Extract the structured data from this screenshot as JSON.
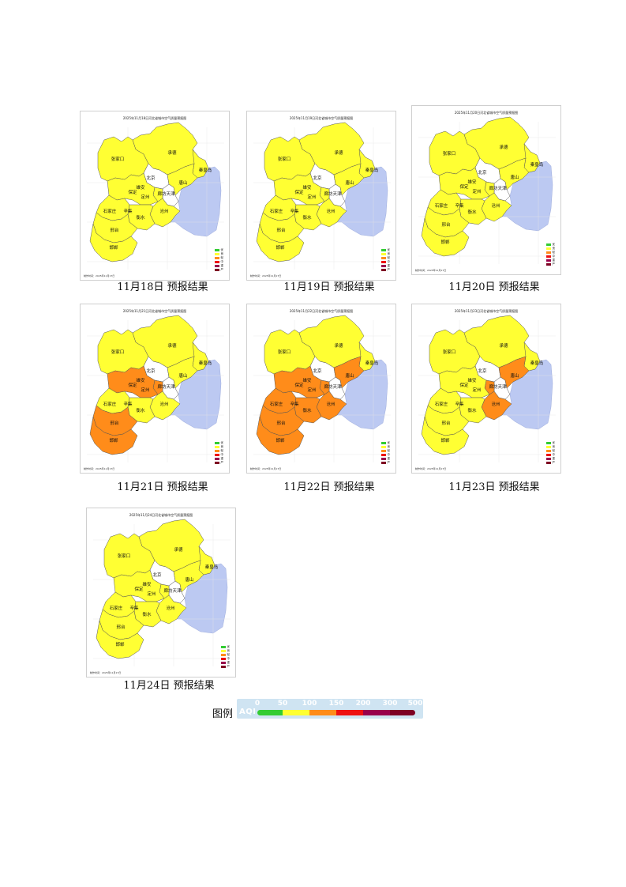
{
  "colors": {
    "good": "#33cc33",
    "moderate": "#ffff33",
    "light": "#ff8c1a",
    "medium": "#ee1111",
    "heavy": "#99004c",
    "severe": "#7e0023",
    "sea": "#bcc9f2",
    "outside": "#ffffff"
  },
  "map_labels": {
    "zhangjiakou": "张家口",
    "chengde": "承德",
    "qinhuangdao": "秦皇岛",
    "beijing": "北京",
    "tianjin": "天津",
    "tangshan": "唐山",
    "langfang": "廊坊",
    "baoding": "保定",
    "shijiazhuang": "石家庄",
    "cangzhou": "沧州",
    "hengshui": "衡水",
    "xingtai": "邢台",
    "handan": "邯郸",
    "xinji": "辛集",
    "dingzhou": "定州",
    "xiongan": "雄安"
  },
  "legend_items": [
    "优",
    "良",
    "轻",
    "中",
    "重",
    "严"
  ],
  "maps": [
    {
      "title": "2025年11月18日河北省城市空气质量预报图",
      "caption": "11月18日 预报结果",
      "footnote": "制作时间：2025年11月17日",
      "orange": []
    },
    {
      "title": "2025年11月19日河北省城市空气质量预报图",
      "caption": "11月19日 预报结果",
      "footnote": "制作时间：2025年11月17日",
      "orange": []
    },
    {
      "title": "2025年11月20日河北省城市空气质量预报图",
      "caption": "11月20日 预报结果",
      "footnote": "制作时间：2025年11月17日",
      "orange": []
    },
    {
      "title": "2025年11月21日河北省城市空气质量预报图",
      "caption": "11月21日 预报结果",
      "footnote": "制作时间：2025年11月17日",
      "orange": [
        "baoding",
        "langfang",
        "xingtai",
        "handan"
      ]
    },
    {
      "title": "2025年11月22日河北省城市空气质量预报图",
      "caption": "11月22日 预报结果",
      "footnote": "制作时间：2025年11月17日",
      "orange": [
        "tangshan",
        "baoding",
        "langfang",
        "shijiazhuang",
        "cangzhou",
        "hengshui",
        "xingtai",
        "handan"
      ]
    },
    {
      "title": "2025年11月23日河北省城市空气质量预报图",
      "caption": "11月23日 预报结果",
      "footnote": "制作时间：2025年11月17日",
      "orange": [
        "tangshan",
        "langfang",
        "cangzhou"
      ]
    },
    {
      "title": "2025年11月24日河北省城市空气质量预报图",
      "caption": "11月24日 预报结果",
      "footnote": "制作时间：2025年11月17日",
      "orange": []
    }
  ],
  "aqi_legend": {
    "label": "图例",
    "title": "AQI",
    "ticks": [
      "0",
      "50",
      "100",
      "150",
      "200",
      "300",
      "500"
    ]
  }
}
